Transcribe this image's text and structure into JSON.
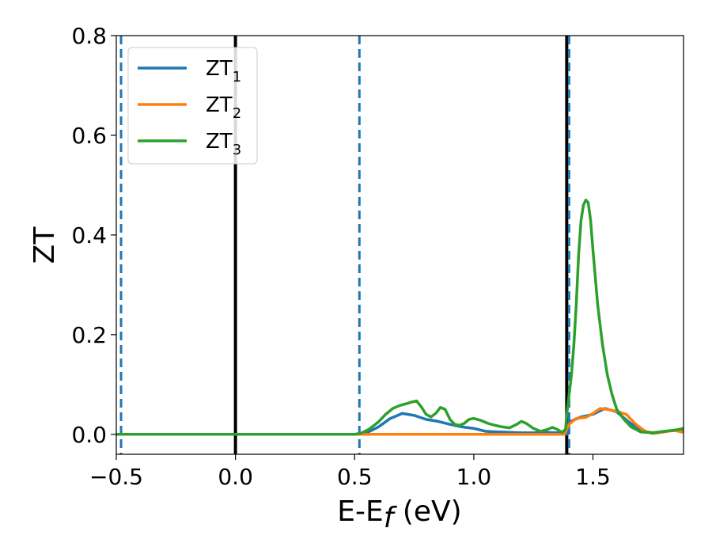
{
  "chart_data": {
    "type": "line",
    "xlabel_main": "E-E",
    "xlabel_sub": "f",
    "xlabel_unit": " (eV)",
    "ylabel": "ZT",
    "xlim": [
      -0.5,
      1.88
    ],
    "ylim": [
      -0.04,
      0.8
    ],
    "xticks": [
      -0.5,
      0.0,
      0.5,
      1.0,
      1.5
    ],
    "xtick_labels": [
      "−0.5",
      "0.0",
      "0.5",
      "1.0",
      "1.5"
    ],
    "yticks": [
      0.0,
      0.2,
      0.4,
      0.6,
      0.8
    ],
    "ytick_labels": [
      "0.0",
      "0.2",
      "0.4",
      "0.6",
      "0.8"
    ],
    "grid": false,
    "legend_placement": "upper-left",
    "vlines": [
      {
        "x": -0.48,
        "style": "dashed",
        "color": "#1f77b4"
      },
      {
        "x": 0.0,
        "style": "solid",
        "color": "#000000"
      },
      {
        "x": 0.52,
        "style": "dashed",
        "color": "#1f77b4"
      },
      {
        "x": 1.39,
        "style": "solid",
        "color": "#000000"
      },
      {
        "x": 1.4,
        "style": "dashed",
        "color": "#1f77b4"
      }
    ],
    "series": [
      {
        "name": "ZT",
        "sub": "1",
        "color": "#1f77b4",
        "x": [
          -0.5,
          0.0,
          0.5,
          0.55,
          0.6,
          0.65,
          0.7,
          0.75,
          0.8,
          0.85,
          0.9,
          0.95,
          1.0,
          1.05,
          1.1,
          1.15,
          1.2,
          1.25,
          1.3,
          1.35,
          1.39,
          1.4,
          1.45,
          1.5,
          1.55,
          1.6,
          1.65,
          1.7,
          1.75,
          1.8,
          1.85,
          1.88
        ],
        "y": [
          0.0,
          0.0,
          0.0,
          0.003,
          0.015,
          0.032,
          0.042,
          0.038,
          0.03,
          0.026,
          0.02,
          0.015,
          0.012,
          0.006,
          0.005,
          0.004,
          0.003,
          0.003,
          0.004,
          0.003,
          0.0,
          0.025,
          0.035,
          0.04,
          0.052,
          0.045,
          0.025,
          0.008,
          0.002,
          0.006,
          0.008,
          0.01
        ]
      },
      {
        "name": "ZT",
        "sub": "2",
        "color": "#ff7f0e",
        "x": [
          -0.5,
          0.0,
          0.5,
          1.38,
          1.4,
          1.43,
          1.47,
          1.5,
          1.53,
          1.56,
          1.6,
          1.64,
          1.68,
          1.72,
          1.76,
          1.8,
          1.84,
          1.88
        ],
        "y": [
          0.0,
          0.0,
          0.0,
          0.0,
          0.02,
          0.032,
          0.034,
          0.042,
          0.052,
          0.05,
          0.046,
          0.04,
          0.02,
          0.006,
          0.002,
          0.005,
          0.008,
          0.004
        ]
      },
      {
        "name": "ZT",
        "sub": "3",
        "color": "#2ca02c",
        "x": [
          -0.5,
          0.0,
          0.5,
          0.53,
          0.56,
          0.6,
          0.63,
          0.66,
          0.69,
          0.72,
          0.74,
          0.76,
          0.78,
          0.8,
          0.82,
          0.84,
          0.86,
          0.88,
          0.9,
          0.92,
          0.94,
          0.96,
          0.98,
          1.0,
          1.03,
          1.06,
          1.09,
          1.12,
          1.15,
          1.18,
          1.2,
          1.22,
          1.25,
          1.28,
          1.31,
          1.33,
          1.35,
          1.37,
          1.385,
          1.39,
          1.4,
          1.41,
          1.42,
          1.43,
          1.44,
          1.45,
          1.46,
          1.47,
          1.48,
          1.49,
          1.5,
          1.52,
          1.54,
          1.56,
          1.58,
          1.6,
          1.63,
          1.66,
          1.7,
          1.75,
          1.8,
          1.85,
          1.88
        ],
        "y": [
          0.0,
          0.0,
          0.0,
          0.003,
          0.01,
          0.025,
          0.04,
          0.052,
          0.058,
          0.062,
          0.065,
          0.067,
          0.055,
          0.04,
          0.035,
          0.042,
          0.054,
          0.05,
          0.03,
          0.02,
          0.018,
          0.022,
          0.03,
          0.032,
          0.028,
          0.022,
          0.018,
          0.015,
          0.013,
          0.02,
          0.026,
          0.022,
          0.012,
          0.006,
          0.01,
          0.014,
          0.01,
          0.004,
          0.01,
          0.04,
          0.08,
          0.12,
          0.18,
          0.26,
          0.36,
          0.43,
          0.46,
          0.47,
          0.465,
          0.43,
          0.37,
          0.26,
          0.18,
          0.12,
          0.08,
          0.05,
          0.03,
          0.015,
          0.005,
          0.003,
          0.006,
          0.009,
          0.012
        ]
      }
    ]
  }
}
